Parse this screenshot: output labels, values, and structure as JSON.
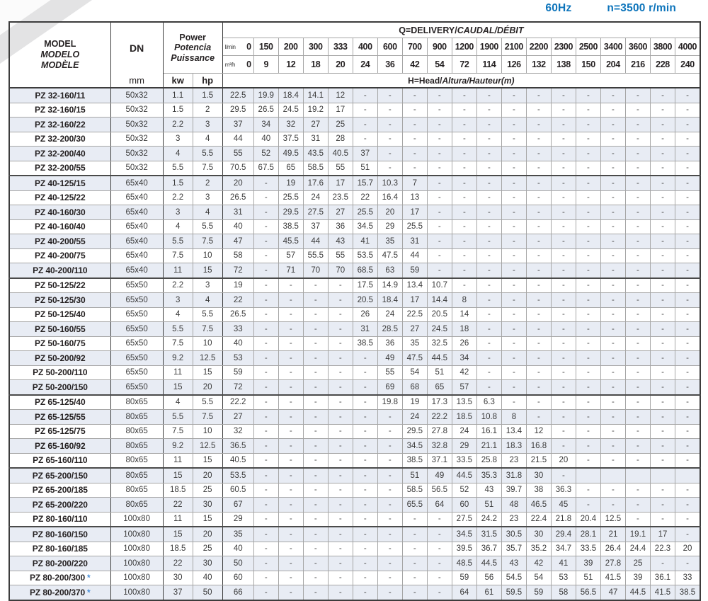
{
  "page": {
    "frequency": "60Hz",
    "speed": "n=3500 r/min"
  },
  "table": {
    "header": {
      "model_lines": [
        "MODEL",
        "MODELO",
        "MODÈLE"
      ],
      "dn_label": "DN",
      "dn_unit": "mm",
      "power_lines": [
        "Power",
        "Potencia",
        "Puissance"
      ],
      "kw_label": "kw",
      "hp_label": "hp",
      "q_label": "Q=DELIVERY/",
      "q_label_italic": "CAUDAL/DÉBIT",
      "lmin_label": "l/min",
      "m3h_label": "m³/h",
      "lmin_values": [
        "0",
        "150",
        "200",
        "300",
        "333",
        "400",
        "600",
        "700",
        "900",
        "1200",
        "1900",
        "2100",
        "2200",
        "2300",
        "2500",
        "3400",
        "3600",
        "3800",
        "4000"
      ],
      "m3h_values": [
        "0",
        "9",
        "12",
        "18",
        "20",
        "24",
        "36",
        "42",
        "54",
        "72",
        "114",
        "126",
        "132",
        "138",
        "150",
        "204",
        "216",
        "228",
        "240"
      ],
      "head_label": "H=Head/",
      "head_label_italic": "Altura/Hauteur(m)"
    },
    "star_marker": "*",
    "group_start_rows": [
      6,
      13,
      21,
      26,
      30
    ],
    "rows": [
      {
        "model": "PZ 32-160/11",
        "star": false,
        "dn": "50x32",
        "kw": "1.1",
        "hp": "1.5",
        "heads": [
          "22.5",
          "19.9",
          "18.4",
          "14.1",
          "12",
          "-",
          "-",
          "-",
          "-",
          "-",
          "-",
          "-",
          "-",
          "-",
          "-",
          "-",
          "-",
          "-",
          "-"
        ]
      },
      {
        "model": "PZ 32-160/15",
        "star": false,
        "dn": "50x32",
        "kw": "1.5",
        "hp": "2",
        "heads": [
          "29.5",
          "26.5",
          "24.5",
          "19.2",
          "17",
          "-",
          "-",
          "-",
          "-",
          "-",
          "-",
          "-",
          "-",
          "-",
          "-",
          "-",
          "-",
          "-",
          "-"
        ]
      },
      {
        "model": "PZ 32-160/22",
        "star": false,
        "dn": "50x32",
        "kw": "2.2",
        "hp": "3",
        "heads": [
          "37",
          "34",
          "32",
          "27",
          "25",
          "-",
          "-",
          "-",
          "-",
          "-",
          "-",
          "-",
          "-",
          "-",
          "-",
          "-",
          "-",
          "-",
          "-"
        ]
      },
      {
        "model": "PZ 32-200/30",
        "star": false,
        "dn": "50x32",
        "kw": "3",
        "hp": "4",
        "heads": [
          "44",
          "40",
          "37.5",
          "31",
          "28",
          "-",
          "-",
          "-",
          "-",
          "-",
          "-",
          "-",
          "-",
          "-",
          "-",
          "-",
          "-",
          "-",
          "-"
        ]
      },
      {
        "model": "PZ 32-200/40",
        "star": false,
        "dn": "50x32",
        "kw": "4",
        "hp": "5.5",
        "heads": [
          "55",
          "52",
          "49.5",
          "43.5",
          "40.5",
          "37",
          "-",
          "-",
          "-",
          "-",
          "-",
          "-",
          "-",
          "-",
          "-",
          "-",
          "-",
          "-",
          "-"
        ]
      },
      {
        "model": "PZ 32-200/55",
        "star": false,
        "dn": "50x32",
        "kw": "5.5",
        "hp": "7.5",
        "heads": [
          "70.5",
          "67.5",
          "65",
          "58.5",
          "55",
          "51",
          "-",
          "-",
          "-",
          "-",
          "-",
          "-",
          "-",
          "-",
          "-",
          "-",
          "-",
          "-",
          "-"
        ]
      },
      {
        "model": "PZ 40-125/15",
        "star": false,
        "dn": "65x40",
        "kw": "1.5",
        "hp": "2",
        "heads": [
          "20",
          "-",
          "19",
          "17.6",
          "17",
          "15.7",
          "10.3",
          "7",
          "-",
          "-",
          "-",
          "-",
          "-",
          "-",
          "-",
          "-",
          "-",
          "-",
          "-"
        ]
      },
      {
        "model": "PZ 40-125/22",
        "star": false,
        "dn": "65x40",
        "kw": "2.2",
        "hp": "3",
        "heads": [
          "26.5",
          "-",
          "25.5",
          "24",
          "23.5",
          "22",
          "16.4",
          "13",
          "-",
          "-",
          "-",
          "-",
          "-",
          "-",
          "-",
          "-",
          "-",
          "-",
          "-"
        ]
      },
      {
        "model": "PZ 40-160/30",
        "star": false,
        "dn": "65x40",
        "kw": "3",
        "hp": "4",
        "heads": [
          "31",
          "-",
          "29.5",
          "27.5",
          "27",
          "25.5",
          "20",
          "17",
          "-",
          "-",
          "-",
          "-",
          "-",
          "-",
          "-",
          "-",
          "-",
          "-",
          "-"
        ]
      },
      {
        "model": "PZ 40-160/40",
        "star": false,
        "dn": "65x40",
        "kw": "4",
        "hp": "5.5",
        "heads": [
          "40",
          "-",
          "38.5",
          "37",
          "36",
          "34.5",
          "29",
          "25.5",
          "-",
          "-",
          "-",
          "-",
          "-",
          "-",
          "-",
          "-",
          "-",
          "-",
          "-"
        ]
      },
      {
        "model": "PZ 40-200/55",
        "star": false,
        "dn": "65x40",
        "kw": "5.5",
        "hp": "7.5",
        "heads": [
          "47",
          "-",
          "45.5",
          "44",
          "43",
          "41",
          "35",
          "31",
          "-",
          "-",
          "-",
          "-",
          "-",
          "-",
          "-",
          "-",
          "-",
          "-",
          "-"
        ]
      },
      {
        "model": "PZ 40-200/75",
        "star": false,
        "dn": "65x40",
        "kw": "7.5",
        "hp": "10",
        "heads": [
          "58",
          "-",
          "57",
          "55.5",
          "55",
          "53.5",
          "47.5",
          "44",
          "-",
          "-",
          "-",
          "-",
          "-",
          "-",
          "-",
          "-",
          "-",
          "-",
          "-"
        ]
      },
      {
        "model": "PZ 40-200/110",
        "star": false,
        "dn": "65x40",
        "kw": "11",
        "hp": "15",
        "heads": [
          "72",
          "-",
          "71",
          "70",
          "70",
          "68.5",
          "63",
          "59",
          "-",
          "-",
          "-",
          "-",
          "-",
          "-",
          "-",
          "-",
          "-",
          "-",
          "-"
        ]
      },
      {
        "model": "PZ 50-125/22",
        "star": false,
        "dn": "65x50",
        "kw": "2.2",
        "hp": "3",
        "heads": [
          "19",
          "-",
          "-",
          "-",
          "-",
          "17.5",
          "14.9",
          "13.4",
          "10.7",
          "-",
          "-",
          "-",
          "-",
          "-",
          "-",
          "-",
          "-",
          "-",
          "-"
        ]
      },
      {
        "model": "PZ 50-125/30",
        "star": false,
        "dn": "65x50",
        "kw": "3",
        "hp": "4",
        "heads": [
          "22",
          "-",
          "-",
          "-",
          "-",
          "20.5",
          "18.4",
          "17",
          "14.4",
          "8",
          "-",
          "-",
          "-",
          "-",
          "-",
          "-",
          "-",
          "-",
          "-"
        ]
      },
      {
        "model": "PZ 50-125/40",
        "star": false,
        "dn": "65x50",
        "kw": "4",
        "hp": "5.5",
        "heads": [
          "26.5",
          "-",
          "-",
          "-",
          "-",
          "26",
          "24",
          "22.5",
          "20.5",
          "14",
          "-",
          "-",
          "-",
          "-",
          "-",
          "-",
          "-",
          "-",
          "-"
        ]
      },
      {
        "model": "PZ 50-160/55",
        "star": false,
        "dn": "65x50",
        "kw": "5.5",
        "hp": "7.5",
        "heads": [
          "33",
          "-",
          "-",
          "-",
          "-",
          "31",
          "28.5",
          "27",
          "24.5",
          "18",
          "-",
          "-",
          "-",
          "-",
          "-",
          "-",
          "-",
          "-",
          "-"
        ]
      },
      {
        "model": "PZ 50-160/75",
        "star": false,
        "dn": "65x50",
        "kw": "7.5",
        "hp": "10",
        "heads": [
          "40",
          "-",
          "-",
          "-",
          "-",
          "38.5",
          "36",
          "35",
          "32.5",
          "26",
          "-",
          "-",
          "-",
          "-",
          "-",
          "-",
          "-",
          "-",
          "-"
        ]
      },
      {
        "model": "PZ 50-200/92",
        "star": false,
        "dn": "65x50",
        "kw": "9.2",
        "hp": "12.5",
        "heads": [
          "53",
          "-",
          "-",
          "-",
          "-",
          "-",
          "49",
          "47.5",
          "44.5",
          "34",
          "-",
          "-",
          "-",
          "-",
          "-",
          "-",
          "-",
          "-",
          "-"
        ]
      },
      {
        "model": "PZ 50-200/110",
        "star": false,
        "dn": "65x50",
        "kw": "11",
        "hp": "15",
        "heads": [
          "59",
          "-",
          "-",
          "-",
          "-",
          "-",
          "55",
          "54",
          "51",
          "42",
          "-",
          "-",
          "-",
          "-",
          "-",
          "-",
          "-",
          "-",
          "-"
        ]
      },
      {
        "model": "PZ 50-200/150",
        "star": false,
        "dn": "65x50",
        "kw": "15",
        "hp": "20",
        "heads": [
          "72",
          "-",
          "-",
          "-",
          "-",
          "-",
          "69",
          "68",
          "65",
          "57",
          "-",
          "-",
          "-",
          "-",
          "-",
          "-",
          "-",
          "-",
          "-"
        ]
      },
      {
        "model": "PZ 65-125/40",
        "star": false,
        "dn": "80x65",
        "kw": "4",
        "hp": "5.5",
        "heads": [
          "22.2",
          "-",
          "-",
          "-",
          "-",
          "-",
          "19.8",
          "19",
          "17.3",
          "13.5",
          "6.3",
          "-",
          "-",
          "-",
          "-",
          "-",
          "-",
          "-",
          "-"
        ]
      },
      {
        "model": "PZ 65-125/55",
        "star": false,
        "dn": "80x65",
        "kw": "5.5",
        "hp": "7.5",
        "heads": [
          "27",
          "-",
          "-",
          "-",
          "-",
          "-",
          "-",
          "24",
          "22.2",
          "18.5",
          "10.8",
          "8",
          "-",
          "-",
          "-",
          "-",
          "-",
          "-",
          "-"
        ]
      },
      {
        "model": "PZ 65-125/75",
        "star": false,
        "dn": "80x65",
        "kw": "7.5",
        "hp": "10",
        "heads": [
          "32",
          "-",
          "-",
          "-",
          "-",
          "-",
          "-",
          "29.5",
          "27.8",
          "24",
          "16.1",
          "13.4",
          "12",
          "-",
          "-",
          "-",
          "-",
          "-",
          "-"
        ]
      },
      {
        "model": "PZ 65-160/92",
        "star": false,
        "dn": "80x65",
        "kw": "9.2",
        "hp": "12.5",
        "heads": [
          "36.5",
          "-",
          "-",
          "-",
          "-",
          "-",
          "-",
          "34.5",
          "32.8",
          "29",
          "21.1",
          "18.3",
          "16.8",
          "-",
          "-",
          "-",
          "-",
          "-",
          "-"
        ]
      },
      {
        "model": "PZ 65-160/110",
        "star": false,
        "dn": "80x65",
        "kw": "11",
        "hp": "15",
        "heads": [
          "40.5",
          "-",
          "-",
          "-",
          "-",
          "-",
          "-",
          "38.5",
          "37.1",
          "33.5",
          "25.8",
          "23",
          "21.5",
          "20",
          "-",
          "-",
          "-",
          "-",
          "-"
        ]
      },
      {
        "model": "PZ 65-200/150",
        "star": false,
        "dn": "80x65",
        "kw": "15",
        "hp": "20",
        "heads": [
          "53.5",
          "-",
          "-",
          "-",
          "-",
          "-",
          "-",
          "51",
          "49",
          "44.5",
          "35.3",
          "31.8",
          "30",
          "-",
          "",
          "",
          "",
          "",
          ""
        ]
      },
      {
        "model": "PZ 65-200/185",
        "star": false,
        "dn": "80x65",
        "kw": "18.5",
        "hp": "25",
        "heads": [
          "60.5",
          "-",
          "-",
          "-",
          "-",
          "-",
          "-",
          "58.5",
          "56.5",
          "52",
          "43",
          "39.7",
          "38",
          "36.3",
          "-",
          "-",
          "-",
          "-",
          "-"
        ]
      },
      {
        "model": "PZ 65-200/220",
        "star": false,
        "dn": "80x65",
        "kw": "22",
        "hp": "30",
        "heads": [
          "67",
          "-",
          "-",
          "-",
          "-",
          "-",
          "-",
          "65.5",
          "64",
          "60",
          "51",
          "48",
          "46.5",
          "45",
          "-",
          "-",
          "-",
          "-",
          "-"
        ]
      },
      {
        "model": "PZ 80-160/110",
        "star": false,
        "dn": "100x80",
        "kw": "11",
        "hp": "15",
        "heads": [
          "29",
          "-",
          "-",
          "-",
          "-",
          "-",
          "-",
          "-",
          "-",
          "27.5",
          "24.2",
          "23",
          "22.4",
          "21.8",
          "20.4",
          "12.5",
          "-",
          "-",
          "-"
        ]
      },
      {
        "model": "PZ 80-160/150",
        "star": false,
        "dn": "100x80",
        "kw": "15",
        "hp": "20",
        "heads": [
          "35",
          "-",
          "-",
          "-",
          "-",
          "-",
          "-",
          "-",
          "-",
          "34.5",
          "31.5",
          "30.5",
          "30",
          "29.4",
          "28.1",
          "21",
          "19.1",
          "17",
          "-"
        ]
      },
      {
        "model": "PZ 80-160/185",
        "star": false,
        "dn": "100x80",
        "kw": "18.5",
        "hp": "25",
        "heads": [
          "40",
          "-",
          "-",
          "-",
          "-",
          "-",
          "-",
          "-",
          "-",
          "39.5",
          "36.7",
          "35.7",
          "35.2",
          "34.7",
          "33.5",
          "26.4",
          "24.4",
          "22.3",
          "20"
        ]
      },
      {
        "model": "PZ 80-200/220",
        "star": false,
        "dn": "100x80",
        "kw": "22",
        "hp": "30",
        "heads": [
          "50",
          "-",
          "-",
          "-",
          "-",
          "-",
          "-",
          "-",
          "-",
          "48.5",
          "44.5",
          "43",
          "42",
          "41",
          "39",
          "27.8",
          "25",
          "-",
          "-"
        ]
      },
      {
        "model": "PZ 80-200/300",
        "star": true,
        "dn": "100x80",
        "kw": "30",
        "hp": "40",
        "heads": [
          "60",
          "-",
          "-",
          "-",
          "-",
          "-",
          "-",
          "-",
          "-",
          "59",
          "56",
          "54.5",
          "54",
          "53",
          "51",
          "41.5",
          "39",
          "36.1",
          "33"
        ]
      },
      {
        "model": "PZ 80-200/370",
        "star": true,
        "dn": "100x80",
        "kw": "37",
        "hp": "50",
        "heads": [
          "66",
          "-",
          "-",
          "-",
          "-",
          "-",
          "-",
          "-",
          "-",
          "64",
          "61",
          "59.5",
          "59",
          "58",
          "56.5",
          "47",
          "44.5",
          "41.5",
          "38.5"
        ]
      }
    ]
  }
}
